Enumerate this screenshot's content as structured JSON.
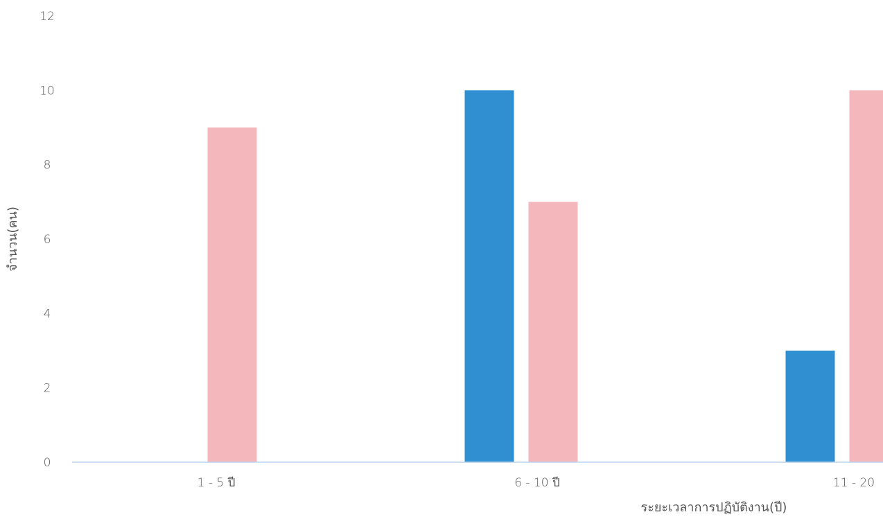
{
  "chart_data": {
    "type": "bar",
    "title": "",
    "xlabel": "ระยะเวลาการปฏิบัติงาน(ปี)",
    "ylabel": "จำนวน(คน)",
    "categories": [
      "1 - 5 ปี",
      "6 - 10 ปี",
      "11 - 20"
    ],
    "series": [
      {
        "color": "#2f8fd0",
        "values": [
          0,
          10,
          3
        ]
      },
      {
        "color": "#f4b7bb",
        "values": [
          9,
          7,
          10
        ]
      }
    ],
    "ylim": [
      0,
      12
    ],
    "yticks": [
      0,
      2,
      4,
      6,
      8,
      10,
      12
    ],
    "grid": false,
    "legend": "none"
  }
}
